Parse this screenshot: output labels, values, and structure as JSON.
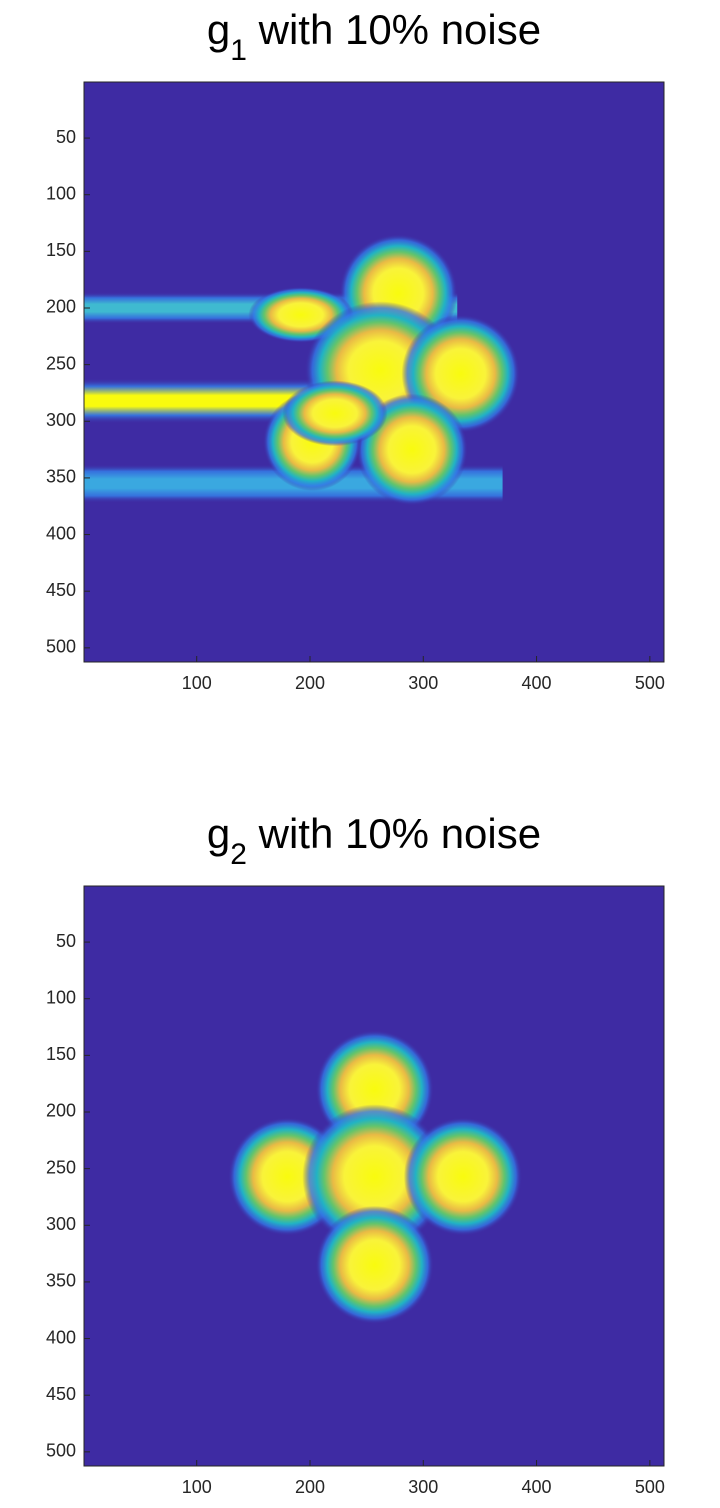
{
  "chart_data": [
    {
      "type": "image",
      "title": [
        "g",
        "1",
        " with 10% noise"
      ],
      "xlim": [
        0.5,
        512.5
      ],
      "ylim": [
        0.5,
        512.5
      ],
      "y_reversed": true,
      "xticks": [
        100,
        200,
        300,
        400,
        500
      ],
      "yticks": [
        50,
        100,
        150,
        200,
        250,
        300,
        350,
        400,
        450,
        500
      ],
      "background": "#3e2ba3",
      "streaks": [
        {
          "x": [
            0.5,
            330
          ],
          "y": [
            186,
            214
          ],
          "color": "#3fbad0"
        },
        {
          "x": [
            0.5,
            275
          ],
          "y": [
            262,
            302
          ],
          "color": "#f9fb0e"
        },
        {
          "x": [
            0.5,
            370
          ],
          "y": [
            338,
            372
          ],
          "color": "#3aa8e0"
        }
      ],
      "blobs": [
        {
          "x": 278,
          "y": 187,
          "rx": 36,
          "ry": 36
        },
        {
          "x": 192,
          "y": 206,
          "rx": 32,
          "ry": 17
        },
        {
          "x": 262,
          "y": 255,
          "rx": 46,
          "ry": 42
        },
        {
          "x": 333,
          "y": 258,
          "rx": 36,
          "ry": 36
        },
        {
          "x": 290,
          "y": 325,
          "rx": 34,
          "ry": 34
        },
        {
          "x": 202,
          "y": 318,
          "rx": 30,
          "ry": 30
        },
        {
          "x": 222,
          "y": 293,
          "rx": 32,
          "ry": 20
        }
      ]
    },
    {
      "type": "image",
      "title": [
        "g",
        "2",
        " with 10% noise"
      ],
      "xlim": [
        0.5,
        512.5
      ],
      "ylim": [
        0.5,
        512.5
      ],
      "y_reversed": true,
      "xticks": [
        100,
        200,
        300,
        400,
        500
      ],
      "yticks": [
        50,
        100,
        150,
        200,
        250,
        300,
        350,
        400,
        450,
        500
      ],
      "background": "#3e2ba3",
      "streaks": [],
      "blobs": [
        {
          "x": 257,
          "y": 180,
          "rx": 36,
          "ry": 36
        },
        {
          "x": 180,
          "y": 257,
          "rx": 36,
          "ry": 36
        },
        {
          "x": 257,
          "y": 257,
          "rx": 44,
          "ry": 44
        },
        {
          "x": 335,
          "y": 257,
          "rx": 36,
          "ry": 36
        },
        {
          "x": 257,
          "y": 335,
          "rx": 36,
          "ry": 36
        }
      ]
    }
  ]
}
